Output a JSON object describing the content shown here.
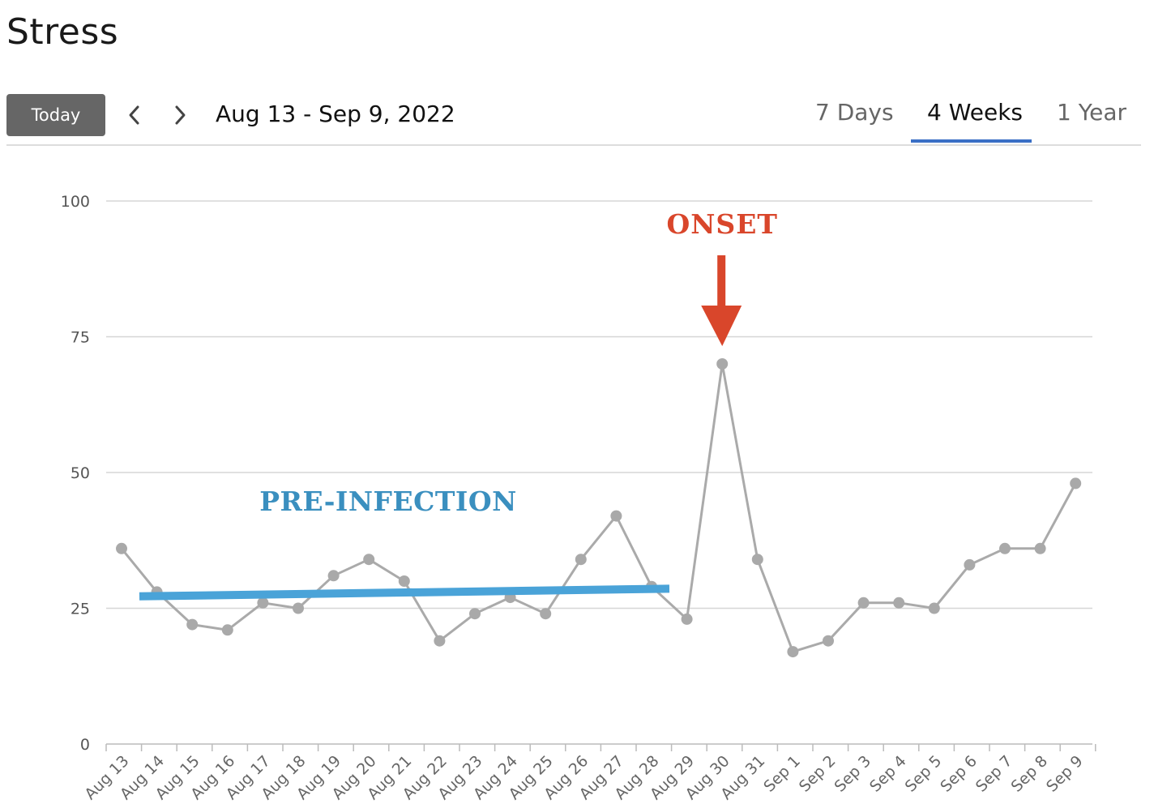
{
  "page": {
    "title": "Stress"
  },
  "toolbar": {
    "today_label": "Today",
    "prev_icon": "chevron-left-icon",
    "next_icon": "chevron-right-icon",
    "date_range": "Aug 13 - Sep 9, 2022",
    "tabs": [
      {
        "label": "7 Days",
        "active": false
      },
      {
        "label": "4 Weeks",
        "active": true
      },
      {
        "label": "1 Year",
        "active": false
      }
    ]
  },
  "colors": {
    "series_line": "#aaaaaa",
    "series_point": "#a9a9a9",
    "gridline": "#d6d6d6",
    "onset": "#d9462b",
    "pre_infection": "#4aa3d8",
    "tab_active": "#3a6fc6",
    "today_button": "#666666"
  },
  "chart_data": {
    "type": "line",
    "title": "",
    "xlabel": "",
    "ylabel": "",
    "ylim": [
      0,
      100
    ],
    "yticks": [
      0,
      25,
      50,
      75,
      100
    ],
    "grid": true,
    "categories": [
      "Aug 13",
      "Aug 14",
      "Aug 15",
      "Aug 16",
      "Aug 17",
      "Aug 18",
      "Aug 19",
      "Aug 20",
      "Aug 21",
      "Aug 22",
      "Aug 23",
      "Aug 24",
      "Aug 25",
      "Aug 26",
      "Aug 27",
      "Aug 28",
      "Aug 29",
      "Aug 30",
      "Aug 31",
      "Sep 1",
      "Sep 2",
      "Sep 3",
      "Sep 4",
      "Sep 5",
      "Sep 6",
      "Sep 7",
      "Sep 8",
      "Sep 9"
    ],
    "values": [
      36,
      28,
      22,
      21,
      26,
      25,
      31,
      34,
      30,
      19,
      24,
      27,
      24,
      34,
      42,
      29,
      23,
      70,
      34,
      17,
      19,
      26,
      26,
      25,
      33,
      36,
      36,
      48
    ],
    "annotations": [
      {
        "text": "ONSET",
        "x": "Aug 30",
        "type": "arrow-down"
      },
      {
        "text": "PRE-INFECTION",
        "type": "trend-line",
        "from": {
          "x": "Aug 13",
          "y": 27.2
        },
        "to": {
          "x": "Aug 28",
          "y": 28.6
        }
      }
    ]
  }
}
